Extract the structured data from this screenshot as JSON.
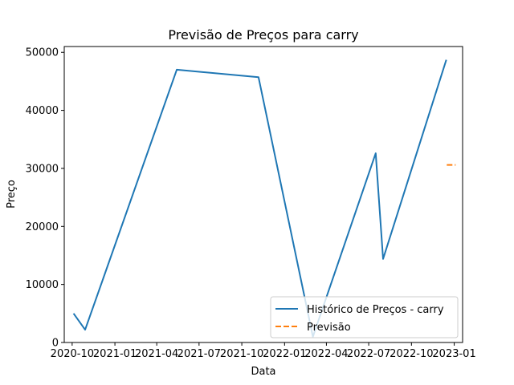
{
  "chart_data": {
    "type": "line",
    "title": "Previsão de Preços para carry",
    "xlabel": "Data",
    "ylabel": "Preço",
    "x_ticks": [
      "2020-10",
      "2021-01",
      "2021-04",
      "2021-07",
      "2021-10",
      "2022-01",
      "2022-04",
      "2022-07",
      "2022-10",
      "2023-01"
    ],
    "y_ticks": [
      "0",
      "10000",
      "20000",
      "30000",
      "40000",
      "50000"
    ],
    "xlim": [
      "2020-09-14",
      "2023-01-19"
    ],
    "ylim": [
      0,
      51000
    ],
    "grid": false,
    "legend_position": "lower-right",
    "series": [
      {
        "name": "Histórico de Preços - carry",
        "color": "#1f77b4",
        "style": "solid",
        "x": [
          "2020-10-04",
          "2020-10-29",
          "2021-05-14",
          "2021-11-06",
          "2022-03-03",
          "2022-07-16",
          "2022-08-01",
          "2022-12-15"
        ],
        "y": [
          5000,
          2200,
          47000,
          45700,
          1000,
          32600,
          14400,
          48700
        ]
      },
      {
        "name": "Previsão",
        "color": "#ff7f0e",
        "style": "dashed",
        "x": [
          "2022-12-16",
          "2023-01-04"
        ],
        "y": [
          30600,
          30600
        ]
      }
    ]
  }
}
